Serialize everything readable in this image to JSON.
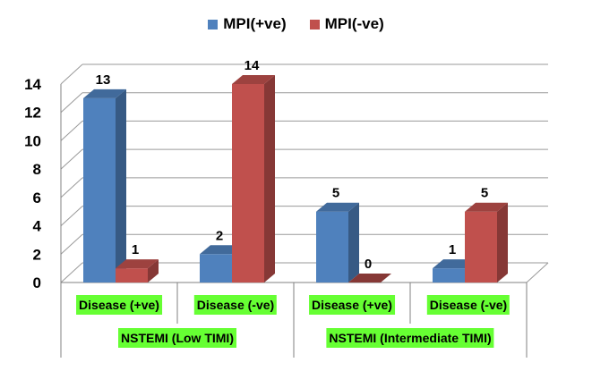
{
  "colors": {
    "blue": "#4f81bd",
    "red": "#c0504d"
  },
  "chart_data": {
    "type": "bar",
    "categories": [
      "Disease (+ve)",
      "Disease (-ve)",
      "Disease (+ve)",
      "Disease (-ve)"
    ],
    "groups": [
      "NSTEMI (Low TIMI)",
      "NSTEMI (Intermediate TIMI)"
    ],
    "series": [
      {
        "name": "MPI(+ve)",
        "values": [
          13,
          2,
          5,
          1
        ]
      },
      {
        "name": "MPI(-ve)",
        "values": [
          1,
          14,
          0,
          5
        ]
      }
    ],
    "yticks": [
      "0",
      "2",
      "4",
      "6",
      "8",
      "10",
      "12",
      "14"
    ],
    "ylim": [
      0,
      14
    ],
    "grid": true,
    "legend": "top-center",
    "style": "3d-column"
  }
}
